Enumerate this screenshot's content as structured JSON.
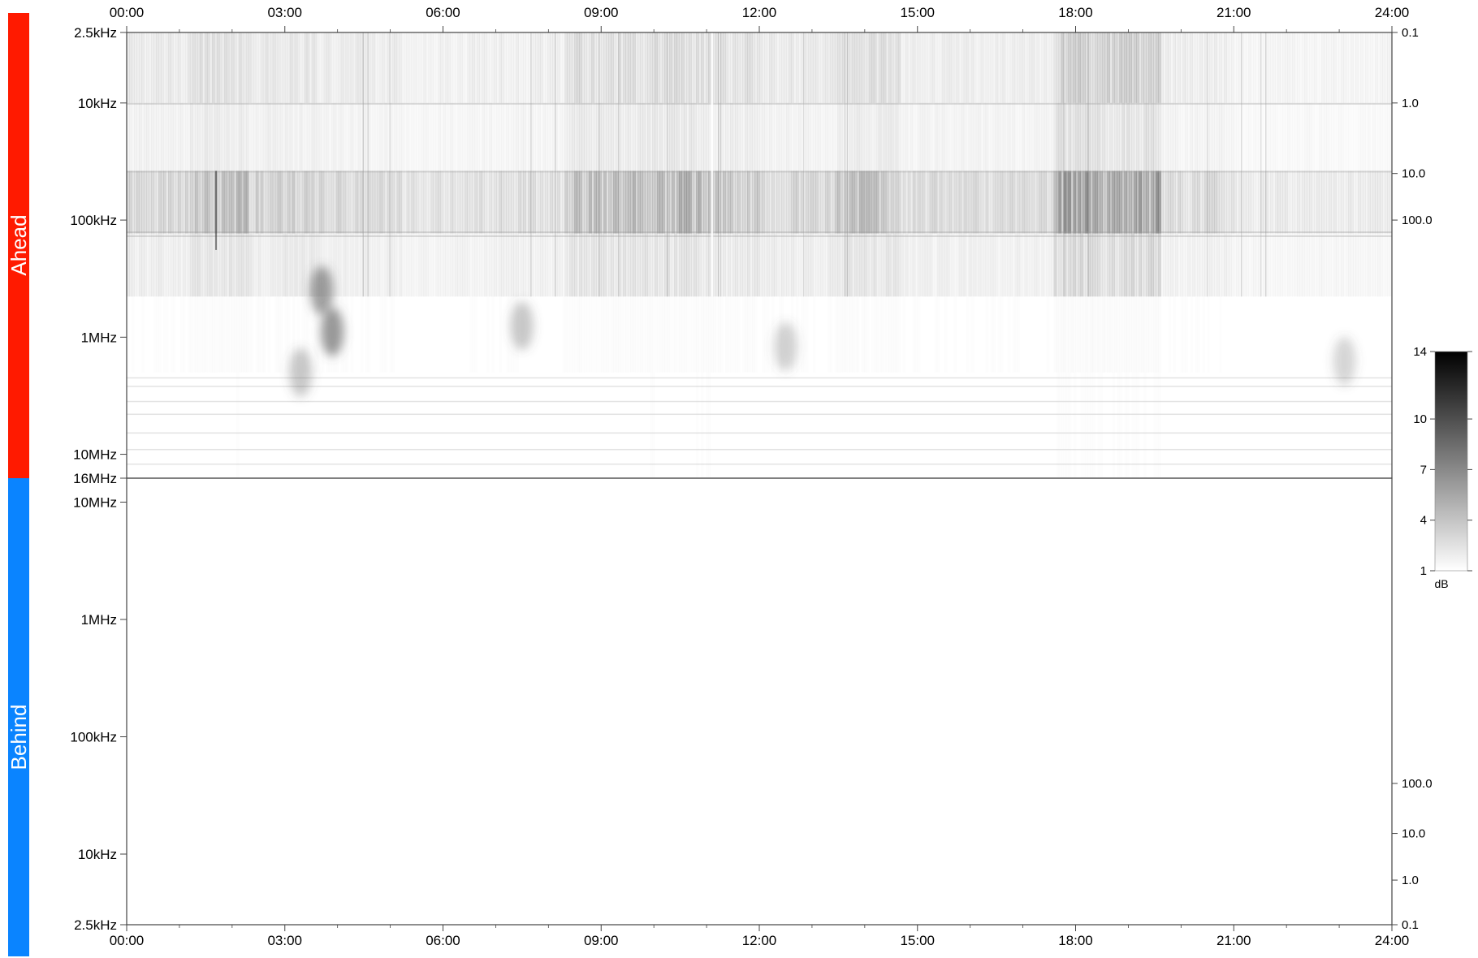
{
  "colors": {
    "ahead": "#ff1a00",
    "behind": "#0a84ff",
    "axis": "#444444",
    "background": "#ffffff"
  },
  "chart_data": {
    "type": "heatmap",
    "x_axis": {
      "labels": [
        "00:00",
        "03:00",
        "06:00",
        "09:00",
        "12:00",
        "15:00",
        "18:00",
        "21:00",
        "24:00"
      ],
      "hours": [
        0,
        3,
        6,
        9,
        12,
        15,
        18,
        21,
        24
      ],
      "range": [
        0,
        24
      ],
      "minor_tick_hours": 1
    },
    "panels": [
      {
        "name": "Ahead",
        "freq_scale": "log",
        "freq_range_hz": [
          2500,
          16000000
        ],
        "freq_orientation": "low-top",
        "freq_ticks": [
          {
            "label": "2.5kHz",
            "hz": 2500
          },
          {
            "label": "10kHz",
            "hz": 10000
          },
          {
            "label": "100kHz",
            "hz": 100000
          },
          {
            "label": "1MHz",
            "hz": 1000000
          },
          {
            "label": "10MHz",
            "hz": 10000000
          },
          {
            "label": "16MHz",
            "hz": 16000000
          }
        ],
        "right_axis_labels": [
          "0.1",
          "1.0",
          "10.0",
          "100.0"
        ],
        "right_axis_hz": [
          2500,
          10000,
          40000,
          100000
        ],
        "has_data": true
      },
      {
        "name": "Behind",
        "freq_scale": "log",
        "freq_range_hz": [
          2500,
          16000000
        ],
        "freq_orientation": "high-top",
        "freq_ticks": [
          {
            "label": "10MHz",
            "hz": 10000000
          },
          {
            "label": "1MHz",
            "hz": 1000000
          },
          {
            "label": "100kHz",
            "hz": 100000
          },
          {
            "label": "10kHz",
            "hz": 10000
          },
          {
            "label": "2.5kHz",
            "hz": 2500
          }
        ],
        "right_axis_labels": [
          "100.0",
          "10.0",
          "1.0",
          "0.1"
        ],
        "right_axis_hz": [
          40000,
          15000,
          6000,
          2500
        ],
        "has_data": false
      }
    ],
    "colorbar": {
      "ticks": [
        "1",
        "4",
        "7",
        "10",
        "14"
      ],
      "values": [
        1,
        4,
        7,
        10,
        14
      ],
      "range": [
        1,
        14
      ],
      "unit": "dB",
      "colormap": "white-to-black"
    },
    "activity_hours": [
      {
        "start": 0.0,
        "end": 1.2,
        "level": 0.35
      },
      {
        "start": 1.2,
        "end": 2.3,
        "level": 0.5
      },
      {
        "start": 2.3,
        "end": 3.6,
        "level": 0.4
      },
      {
        "start": 3.6,
        "end": 5.2,
        "level": 0.32
      },
      {
        "start": 5.2,
        "end": 6.5,
        "level": 0.25
      },
      {
        "start": 6.5,
        "end": 8.3,
        "level": 0.28
      },
      {
        "start": 8.3,
        "end": 9.6,
        "level": 0.5
      },
      {
        "start": 9.6,
        "end": 11.1,
        "level": 0.55
      },
      {
        "start": 11.1,
        "end": 12.0,
        "level": 0.45
      },
      {
        "start": 12.0,
        "end": 13.5,
        "level": 0.35
      },
      {
        "start": 13.5,
        "end": 14.7,
        "level": 0.48
      },
      {
        "start": 14.7,
        "end": 17.6,
        "level": 0.3
      },
      {
        "start": 17.6,
        "end": 19.6,
        "level": 0.7
      },
      {
        "start": 19.6,
        "end": 21.0,
        "level": 0.3
      },
      {
        "start": 21.0,
        "end": 24.0,
        "level": 0.18
      }
    ],
    "bursts": [
      {
        "hour": 3.7,
        "freq_hz": 400000,
        "level": 0.7
      },
      {
        "hour": 3.9,
        "freq_hz": 900000,
        "level": 0.75
      },
      {
        "hour": 3.3,
        "freq_hz": 2000000,
        "level": 0.4
      },
      {
        "hour": 7.5,
        "freq_hz": 800000,
        "level": 0.4
      },
      {
        "hour": 12.5,
        "freq_hz": 1200000,
        "level": 0.35
      },
      {
        "hour": 23.1,
        "freq_hz": 1600000,
        "level": 0.3
      }
    ]
  }
}
